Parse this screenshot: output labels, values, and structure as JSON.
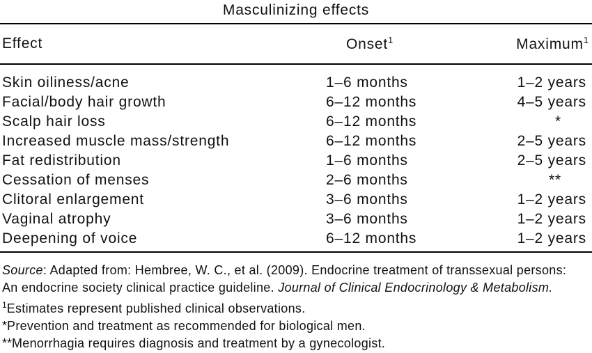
{
  "title": "Masculinizing effects",
  "table": {
    "headers": {
      "effect": "Effect",
      "onset": {
        "label": "Onset",
        "sup": "1"
      },
      "maximum": {
        "label": "Maximum",
        "sup": "1"
      }
    },
    "rows": [
      {
        "effect": "Skin oiliness/acne",
        "onset": "1–6 months",
        "maximum": "1–2 years"
      },
      {
        "effect": "Facial/body hair growth",
        "onset": "6–12 months",
        "maximum": "4–5 years"
      },
      {
        "effect": "Scalp hair loss",
        "onset": "6–12 months",
        "maximum": "*"
      },
      {
        "effect": "Increased muscle mass/strength",
        "onset": "6–12 months",
        "maximum": "2–5 years"
      },
      {
        "effect": "Fat redistribution",
        "onset": "1–6 months",
        "maximum": "2–5 years"
      },
      {
        "effect": "Cessation of menses",
        "onset": "2–6 months",
        "maximum": "**"
      },
      {
        "effect": "Clitoral enlargement",
        "onset": "3–6 months",
        "maximum": "1–2 years"
      },
      {
        "effect": "Vaginal atrophy",
        "onset": "3–6 months",
        "maximum": "1–2 years"
      },
      {
        "effect": "Deepening of voice",
        "onset": "6–12 months",
        "maximum": "1–2 years"
      }
    ]
  },
  "footer": {
    "source_label": "Source",
    "source_line1_rest": ": Adapted from: Hembree, W. C., et al. (2009). Endocrine treatment of transsexual persons:",
    "source_line2_regular": "An endocrine society clinical practice guideline. ",
    "source_line2_italic": "Journal of Clinical Endocrinology & Metabolism.",
    "footnotes": [
      {
        "marker": "1",
        "text": "Estimates represent published clinical observations."
      },
      {
        "marker": "*",
        "text": "Prevention and treatment as recommended for biological men."
      },
      {
        "marker": "**",
        "text": "Menorrhagia requires diagnosis and treatment by a gynecologist."
      }
    ],
    "text_color": "#111111",
    "rule_color": "#000000"
  }
}
